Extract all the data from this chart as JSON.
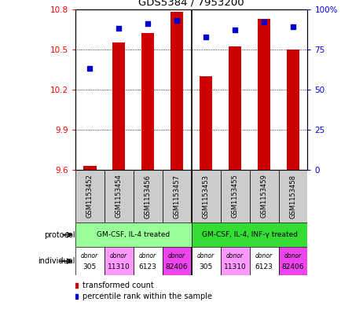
{
  "title": "GDS5384 / 7953200",
  "samples": [
    "GSM1153452",
    "GSM1153454",
    "GSM1153456",
    "GSM1153457",
    "GSM1153453",
    "GSM1153455",
    "GSM1153459",
    "GSM1153458"
  ],
  "bar_values": [
    9.63,
    10.55,
    10.62,
    10.78,
    10.3,
    10.52,
    10.73,
    10.5
  ],
  "bar_bottom": 9.6,
  "percentile_values": [
    63,
    88,
    91,
    93,
    83,
    87,
    92,
    89
  ],
  "ylim": [
    9.6,
    10.8
  ],
  "yticks": [
    9.6,
    9.9,
    10.2,
    10.5,
    10.8
  ],
  "y2ticks": [
    0,
    25,
    50,
    75,
    100
  ],
  "bar_color": "#cc0000",
  "dot_color": "#0000cc",
  "protocol_groups": [
    {
      "label": "GM-CSF, IL-4 treated",
      "start": 0,
      "end": 4,
      "color": "#99ff99"
    },
    {
      "label": "GM-CSF, IL-4, INF-γ treated",
      "start": 4,
      "end": 8,
      "color": "#33dd33"
    }
  ],
  "individuals": [
    {
      "label": "donor\n305",
      "color": "#ffffff"
    },
    {
      "label": "donor\n11310",
      "color": "#ff99ff"
    },
    {
      "label": "donor\n6123",
      "color": "#ffffff"
    },
    {
      "label": "donor\n82406",
      "color": "#ee44ee"
    },
    {
      "label": "donor\n305",
      "color": "#ffffff"
    },
    {
      "label": "donor\n11310",
      "color": "#ff99ff"
    },
    {
      "label": "donor\n6123",
      "color": "#ffffff"
    },
    {
      "label": "donor\n82406",
      "color": "#ee44ee"
    }
  ],
  "background_color": "#ffffff",
  "sample_bg_color": "#cccccc"
}
